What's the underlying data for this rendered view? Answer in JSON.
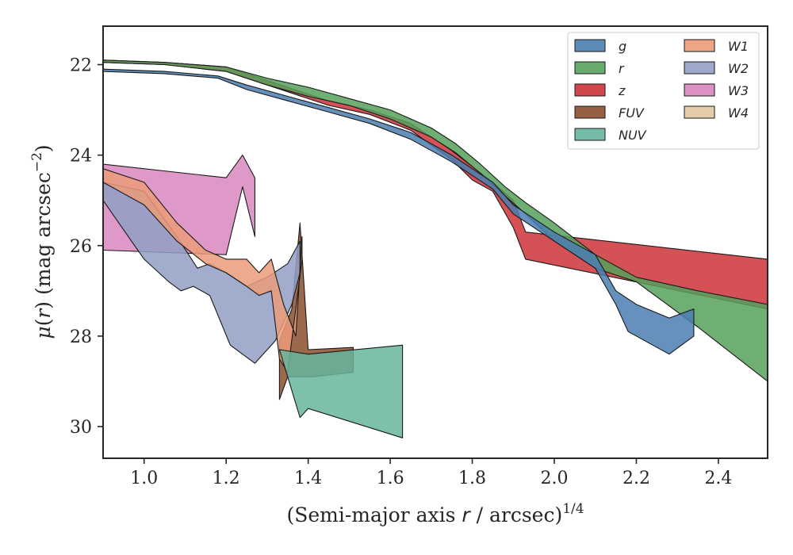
{
  "chart_data": {
    "type": "area",
    "xlabel_parts": {
      "prefix": "(Semi-major axis ",
      "var": "r",
      "mid": " / arcsec)",
      "exp": "1/4"
    },
    "ylabel_parts": {
      "mu": "μ",
      "open": "(",
      "var": "r",
      "close": ")",
      "text": " (mag arcsec",
      "exp": "−2",
      "end": ")"
    },
    "xlim": [
      0.9,
      2.52
    ],
    "ylim": [
      30.7,
      21.15
    ],
    "y_inverted": true,
    "xticks": [
      1.0,
      1.2,
      1.4,
      1.6,
      1.8,
      2.0,
      2.2,
      2.4
    ],
    "xtick_labels": [
      "1.0",
      "1.2",
      "1.4",
      "1.6",
      "1.8",
      "2.0",
      "2.2",
      "2.4"
    ],
    "yticks": [
      22,
      24,
      26,
      28,
      30
    ],
    "ytick_labels": [
      "22",
      "24",
      "26",
      "28",
      "30"
    ],
    "grid": false,
    "legend_position": "top-right",
    "legend_columns": 2,
    "series": [
      {
        "name": "W4",
        "color": "#e1c6a2",
        "upper": [],
        "lower": []
      },
      {
        "name": "FUV",
        "color": "#8c4f2d",
        "upper": [
          [
            1.33,
            28.1
          ],
          [
            1.36,
            27.4
          ],
          [
            1.38,
            25.5
          ],
          [
            1.4,
            28.3
          ],
          [
            1.51,
            28.25
          ]
        ],
        "lower": [
          [
            1.33,
            29.4
          ],
          [
            1.35,
            28.9
          ],
          [
            1.41,
            28.9
          ],
          [
            1.51,
            28.8
          ]
        ]
      },
      {
        "name": "W3",
        "color": "#d887be",
        "upper": [
          [
            0.9,
            24.2
          ],
          [
            1.2,
            24.5
          ],
          [
            1.24,
            24.0
          ],
          [
            1.27,
            24.5
          ]
        ],
        "lower": [
          [
            0.9,
            26.1
          ],
          [
            1.2,
            26.2
          ],
          [
            1.24,
            24.7
          ],
          [
            1.27,
            25.8
          ]
        ]
      },
      {
        "name": "W2",
        "color": "#929fc6",
        "upper": [
          [
            0.9,
            24.6
          ],
          [
            1.0,
            24.8
          ],
          [
            1.08,
            25.8
          ],
          [
            1.13,
            26.5
          ],
          [
            1.16,
            26.4
          ],
          [
            1.2,
            26.6
          ],
          [
            1.25,
            26.9
          ],
          [
            1.3,
            26.7
          ],
          [
            1.35,
            26.4
          ],
          [
            1.38,
            25.9
          ]
        ],
        "lower": [
          [
            0.9,
            25.0
          ],
          [
            1.0,
            26.3
          ],
          [
            1.06,
            26.8
          ],
          [
            1.09,
            27.0
          ],
          [
            1.12,
            26.9
          ],
          [
            1.16,
            27.1
          ],
          [
            1.21,
            28.2
          ],
          [
            1.27,
            28.6
          ],
          [
            1.32,
            28.1
          ],
          [
            1.36,
            27.3
          ],
          [
            1.38,
            26.6
          ]
        ]
      },
      {
        "name": "W1",
        "color": "#eb9b79",
        "upper": [
          [
            0.9,
            24.3
          ],
          [
            1.0,
            24.6
          ],
          [
            1.08,
            25.5
          ],
          [
            1.15,
            26.1
          ],
          [
            1.2,
            26.3
          ],
          [
            1.25,
            26.3
          ],
          [
            1.28,
            26.6
          ],
          [
            1.31,
            26.3
          ],
          [
            1.34,
            27.3
          ],
          [
            1.37,
            28.0
          ],
          [
            1.385,
            25.8
          ]
        ],
        "lower": [
          [
            0.9,
            24.6
          ],
          [
            1.0,
            25.1
          ],
          [
            1.08,
            25.9
          ],
          [
            1.15,
            26.4
          ],
          [
            1.2,
            26.6
          ],
          [
            1.25,
            26.9
          ],
          [
            1.28,
            27.1
          ],
          [
            1.31,
            27.0
          ],
          [
            1.33,
            28.5
          ],
          [
            1.35,
            28.8
          ],
          [
            1.385,
            26.3
          ]
        ]
      },
      {
        "name": "NUV",
        "color": "#66b59e",
        "upper": [
          [
            1.33,
            28.3
          ],
          [
            1.4,
            28.4
          ],
          [
            1.63,
            28.2
          ]
        ],
        "lower": [
          [
            1.38,
            29.8
          ],
          [
            1.4,
            29.6
          ],
          [
            1.63,
            30.25
          ]
        ]
      },
      {
        "name": "z",
        "color": "#cc3338",
        "upper": [
          [
            0.9,
            21.9
          ],
          [
            1.05,
            21.95
          ],
          [
            1.2,
            22.05
          ],
          [
            1.3,
            22.35
          ],
          [
            1.45,
            22.8
          ],
          [
            1.55,
            23.0
          ],
          [
            1.65,
            23.3
          ],
          [
            1.75,
            23.9
          ],
          [
            1.85,
            24.6
          ],
          [
            1.9,
            25.0
          ],
          [
            1.93,
            25.7
          ],
          [
            2.52,
            26.3
          ]
        ],
        "lower": [
          [
            0.9,
            21.95
          ],
          [
            1.05,
            22.0
          ],
          [
            1.2,
            22.15
          ],
          [
            1.3,
            22.45
          ],
          [
            1.45,
            22.9
          ],
          [
            1.55,
            23.1
          ],
          [
            1.65,
            23.45
          ],
          [
            1.75,
            24.1
          ],
          [
            1.8,
            24.55
          ],
          [
            1.85,
            24.8
          ],
          [
            1.9,
            25.6
          ],
          [
            1.93,
            26.3
          ],
          [
            2.52,
            27.4
          ]
        ]
      },
      {
        "name": "r",
        "color": "#56a15c",
        "upper": [
          [
            0.9,
            21.9
          ],
          [
            1.05,
            21.95
          ],
          [
            1.2,
            22.05
          ],
          [
            1.3,
            22.3
          ],
          [
            1.4,
            22.5
          ],
          [
            1.5,
            22.75
          ],
          [
            1.6,
            23.0
          ],
          [
            1.7,
            23.4
          ],
          [
            1.76,
            23.75
          ],
          [
            1.82,
            24.2
          ],
          [
            1.88,
            24.7
          ],
          [
            1.93,
            25.05
          ],
          [
            2.0,
            25.5
          ],
          [
            2.1,
            26.2
          ],
          [
            2.2,
            26.7
          ],
          [
            2.35,
            27.0
          ],
          [
            2.52,
            27.3
          ]
        ],
        "lower": [
          [
            0.9,
            21.95
          ],
          [
            1.05,
            22.0
          ],
          [
            1.2,
            22.15
          ],
          [
            1.3,
            22.45
          ],
          [
            1.4,
            22.7
          ],
          [
            1.5,
            22.9
          ],
          [
            1.6,
            23.2
          ],
          [
            1.7,
            23.6
          ],
          [
            1.76,
            23.95
          ],
          [
            1.82,
            24.4
          ],
          [
            1.88,
            24.9
          ],
          [
            1.93,
            25.3
          ],
          [
            2.0,
            25.9
          ],
          [
            2.1,
            26.5
          ],
          [
            2.2,
            26.8
          ],
          [
            2.35,
            27.8
          ],
          [
            2.52,
            29.0
          ]
        ]
      },
      {
        "name": "g",
        "color": "#4a7eb0",
        "upper": [
          [
            0.9,
            22.1
          ],
          [
            1.05,
            22.15
          ],
          [
            1.18,
            22.25
          ],
          [
            1.25,
            22.45
          ],
          [
            1.35,
            22.7
          ],
          [
            1.45,
            22.95
          ],
          [
            1.55,
            23.2
          ],
          [
            1.65,
            23.5
          ],
          [
            1.75,
            24.0
          ],
          [
            1.85,
            24.6
          ],
          [
            1.9,
            25.1
          ],
          [
            2.0,
            25.7
          ],
          [
            2.1,
            26.2
          ],
          [
            2.15,
            27.0
          ],
          [
            2.2,
            27.3
          ],
          [
            2.28,
            27.6
          ],
          [
            2.34,
            27.4
          ]
        ],
        "lower": [
          [
            0.9,
            22.15
          ],
          [
            1.05,
            22.2
          ],
          [
            1.18,
            22.3
          ],
          [
            1.25,
            22.55
          ],
          [
            1.35,
            22.8
          ],
          [
            1.45,
            23.05
          ],
          [
            1.55,
            23.3
          ],
          [
            1.65,
            23.65
          ],
          [
            1.75,
            24.15
          ],
          [
            1.85,
            24.75
          ],
          [
            1.9,
            25.3
          ],
          [
            2.0,
            25.9
          ],
          [
            2.1,
            26.5
          ],
          [
            2.15,
            27.3
          ],
          [
            2.18,
            27.9
          ],
          [
            2.28,
            28.4
          ],
          [
            2.34,
            28.0
          ]
        ]
      }
    ],
    "legend": [
      {
        "name": "g",
        "color": "#4a7eb0"
      },
      {
        "name": "r",
        "color": "#56a15c"
      },
      {
        "name": "z",
        "color": "#cc3338"
      },
      {
        "name": "FUV",
        "color": "#8c4f2d"
      },
      {
        "name": "NUV",
        "color": "#66b59e"
      },
      {
        "name": "W1",
        "color": "#eb9b79"
      },
      {
        "name": "W2",
        "color": "#929fc6"
      },
      {
        "name": "W3",
        "color": "#d887be"
      },
      {
        "name": "W4",
        "color": "#e1c6a2"
      }
    ]
  }
}
